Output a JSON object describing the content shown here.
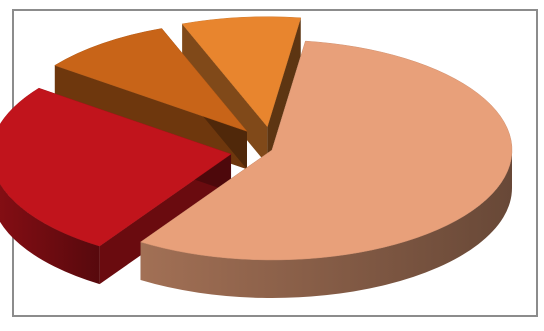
{
  "chart_data": {
    "type": "pie",
    "style": "3d-exploded",
    "title": "",
    "legend": "none",
    "data_labels": "none",
    "slices": [
      {
        "value": 57,
        "color": "#e8a07a",
        "exploded": false
      },
      {
        "value": 26,
        "color": "#c1141c",
        "exploded": true
      },
      {
        "value": 9,
        "color": "#c86418",
        "exploded": true
      },
      {
        "value": 8,
        "color": "#e8852e",
        "exploded": true
      }
    ]
  }
}
